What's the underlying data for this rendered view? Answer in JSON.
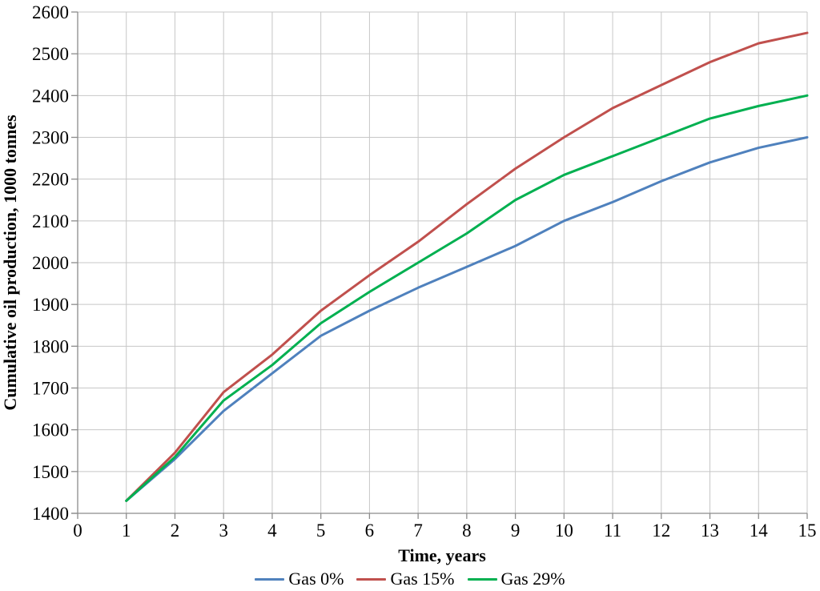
{
  "chart_data": {
    "type": "line",
    "title": "",
    "xlabel": "Time, years",
    "ylabel": "Cumulative oil production, 1000 tonnes",
    "xlim": [
      0,
      15
    ],
    "ylim": [
      1400,
      2600
    ],
    "x_ticks": [
      0,
      1,
      2,
      3,
      4,
      5,
      6,
      7,
      8,
      9,
      10,
      11,
      12,
      13,
      14,
      15
    ],
    "y_ticks": [
      1400,
      1500,
      1600,
      1700,
      1800,
      1900,
      2000,
      2100,
      2200,
      2300,
      2400,
      2500,
      2600
    ],
    "grid": true,
    "legend_position": "bottom",
    "x": [
      1,
      2,
      3,
      4,
      5,
      6,
      7,
      8,
      9,
      10,
      11,
      12,
      13,
      14,
      15
    ],
    "series": [
      {
        "name": "Gas 0%",
        "color": "#4F81BD",
        "values": [
          1430,
          1530,
          1645,
          1735,
          1825,
          1885,
          1940,
          1990,
          2040,
          2100,
          2145,
          2195,
          2240,
          2275,
          2300
        ]
      },
      {
        "name": "Gas 15%",
        "color": "#C0504D",
        "values": [
          1430,
          1545,
          1690,
          1780,
          1885,
          1970,
          2050,
          2140,
          2225,
          2300,
          2370,
          2425,
          2480,
          2525,
          2550
        ]
      },
      {
        "name": "Gas 29%",
        "color": "#00B050",
        "values": [
          1430,
          1535,
          1670,
          1755,
          1855,
          1930,
          2000,
          2070,
          2150,
          2210,
          2255,
          2300,
          2345,
          2375,
          2400
        ]
      }
    ],
    "colors": {
      "grid": "#C7C7C7",
      "axis": "#8C8C8C",
      "text": "#000000",
      "background": "#FFFFFF"
    }
  }
}
